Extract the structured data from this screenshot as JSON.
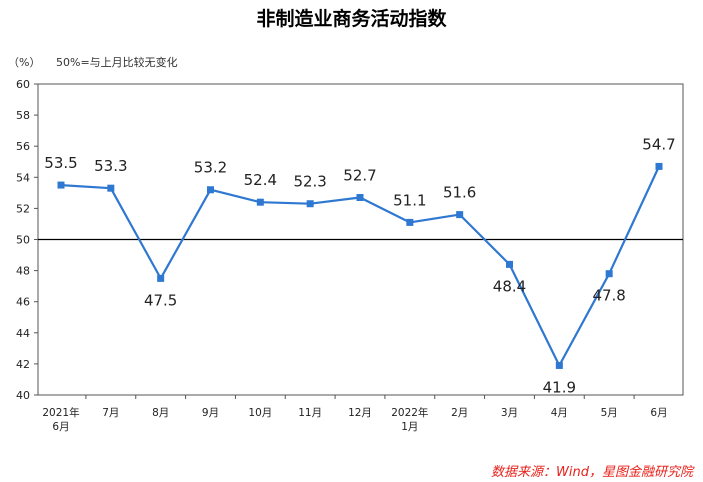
{
  "chart_data": {
    "type": "line",
    "title": "非制造业商务活动指数",
    "unit": "（%）",
    "reference_note": "50%=与上月比较无变化",
    "reference_value": 50,
    "categories": [
      [
        "2021年",
        "6月"
      ],
      [
        "7月"
      ],
      [
        "8月"
      ],
      [
        "9月"
      ],
      [
        "10月"
      ],
      [
        "11月"
      ],
      [
        "12月"
      ],
      [
        "2022年",
        "1月"
      ],
      [
        "2月"
      ],
      [
        "3月"
      ],
      [
        "4月"
      ],
      [
        "5月"
      ],
      [
        "6月"
      ]
    ],
    "series": [
      {
        "values": [
          53.5,
          53.3,
          47.5,
          53.2,
          52.4,
          52.3,
          52.7,
          51.1,
          51.6,
          48.4,
          41.9,
          47.8,
          54.7
        ]
      }
    ],
    "data_labels": [
      "53.5",
      "53.3",
      "47.5",
      "53.2",
      "52.4",
      "52.3",
      "52.7",
      "51.1",
      "51.6",
      "48.4",
      "41.9",
      "47.8",
      "54.7"
    ],
    "ylim": [
      40,
      60
    ],
    "yticks": [
      40,
      42,
      44,
      46,
      48,
      50,
      52,
      54,
      56,
      58,
      60
    ],
    "line_color": "#2f78d1",
    "grid": false,
    "legend": "none"
  },
  "source_note": "数据来源：Wind，星图金融研究院"
}
